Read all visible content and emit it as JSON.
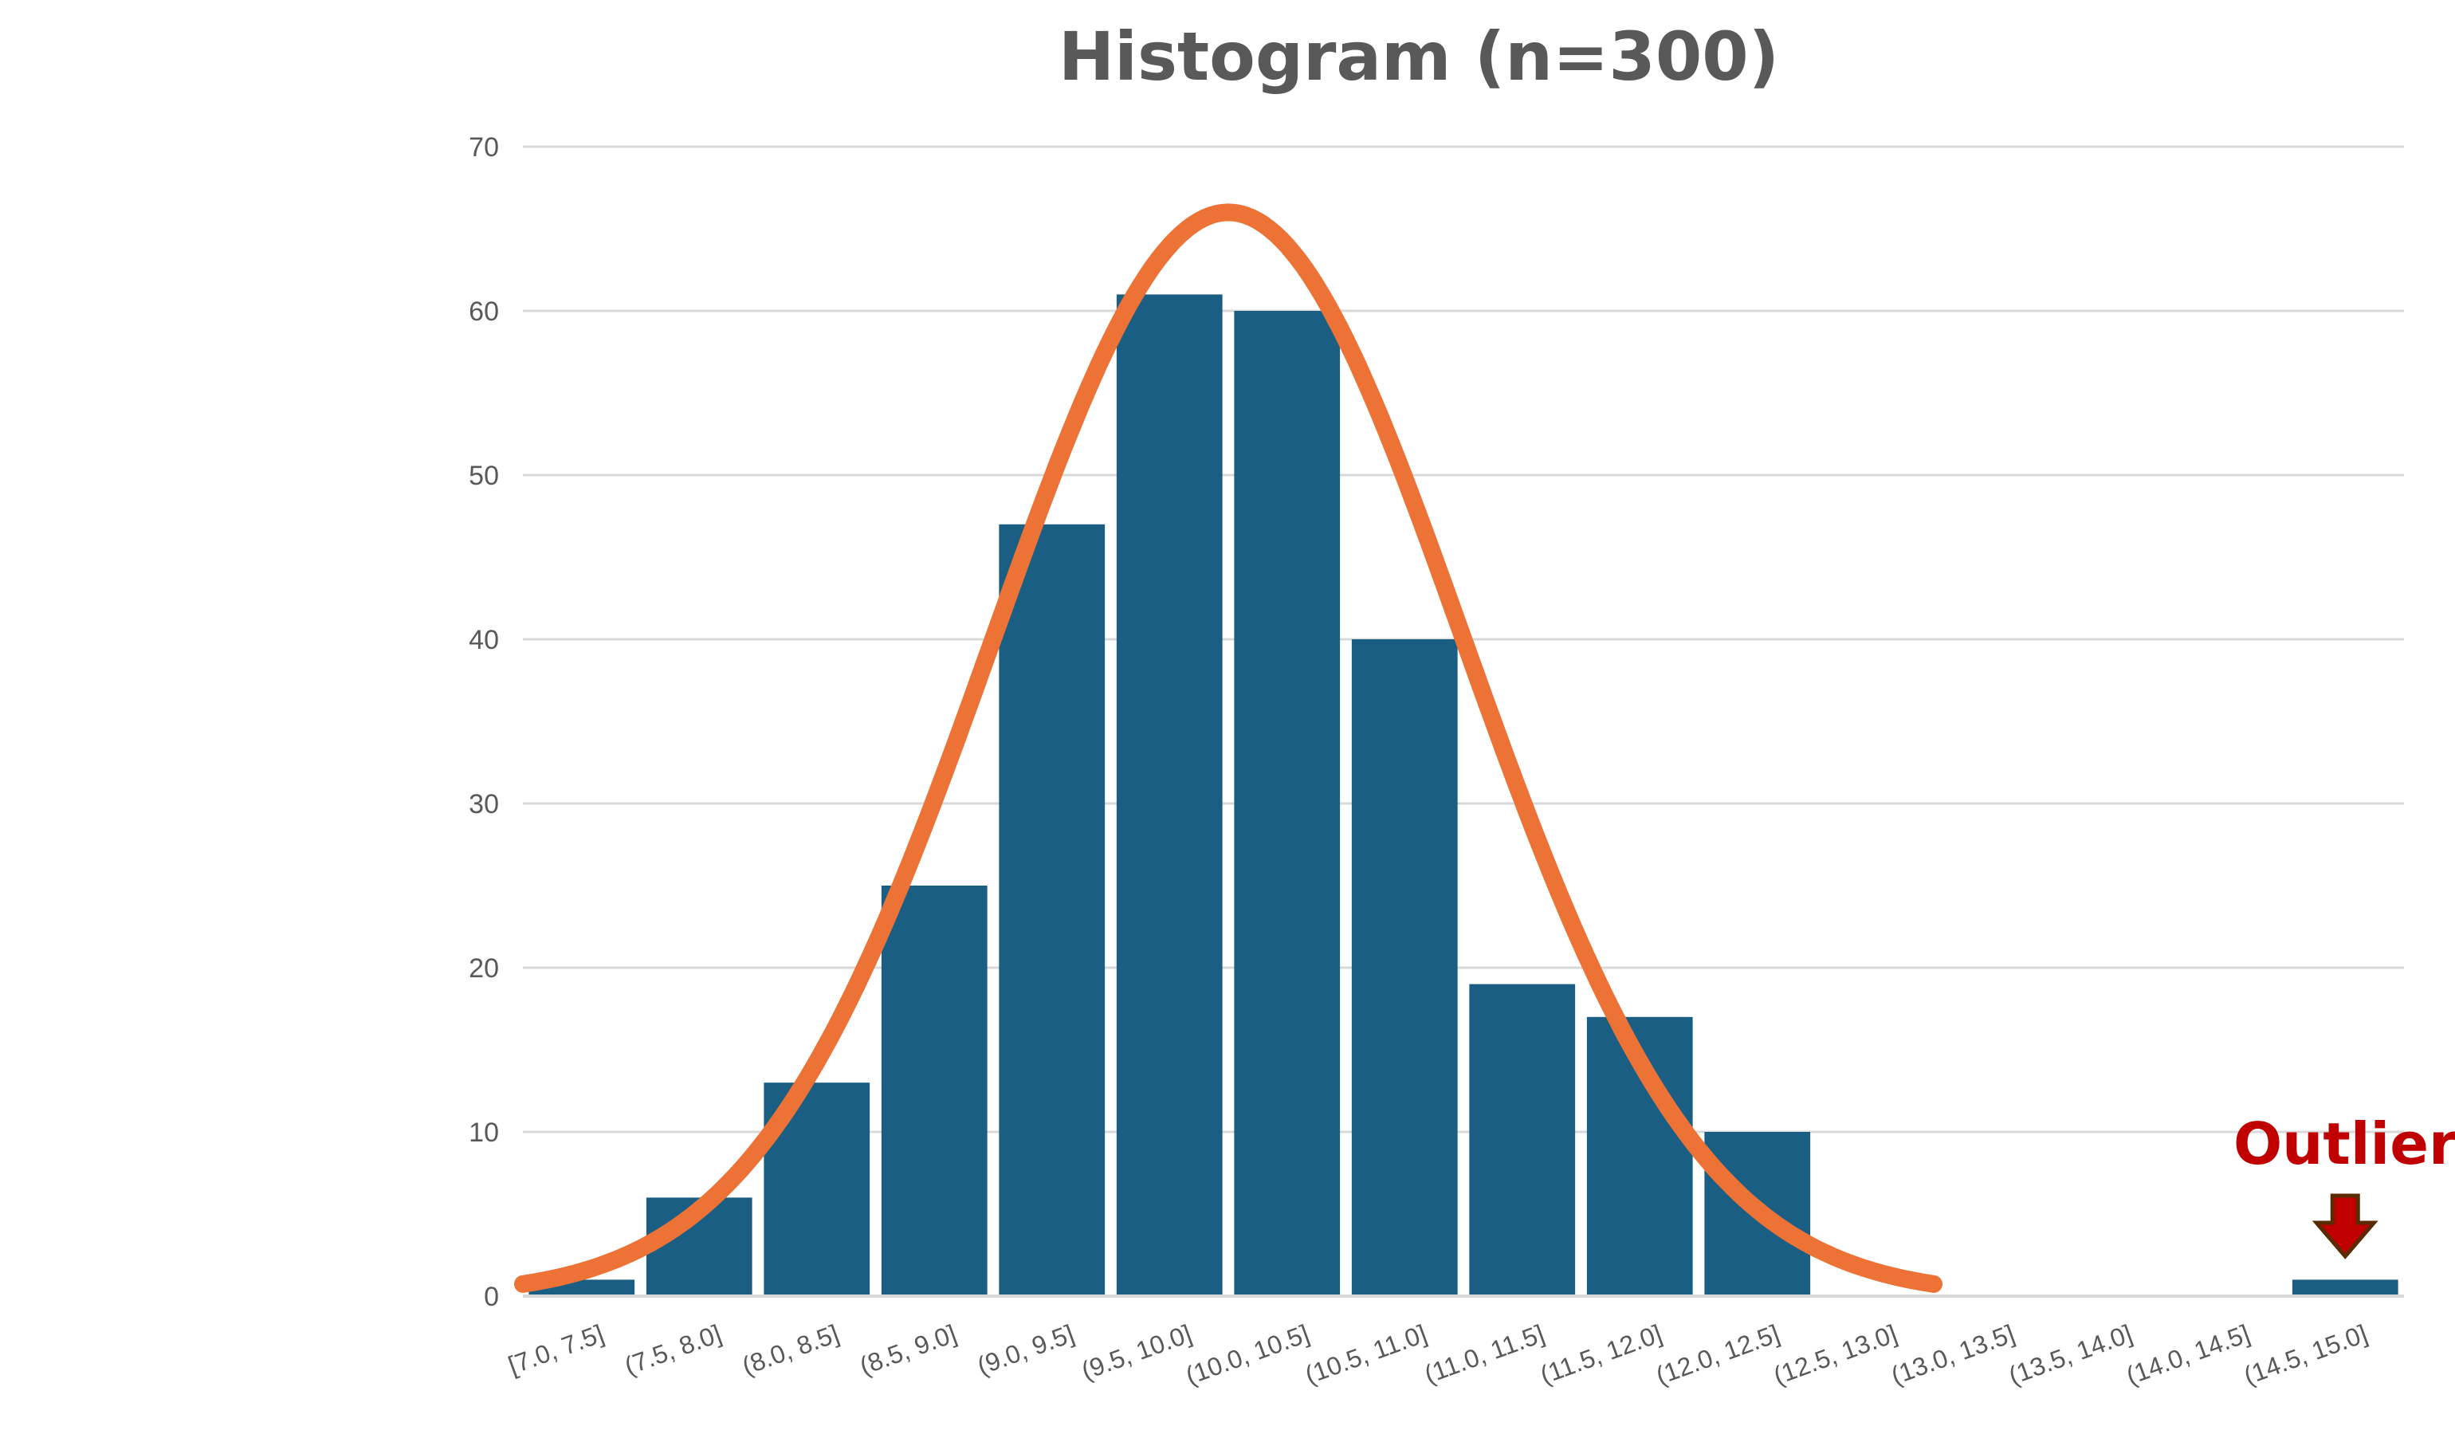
{
  "chart_data": {
    "type": "bar",
    "title": "Histogram (n=300)",
    "xlabel": "",
    "ylabel": "",
    "ylim": [
      0,
      70
    ],
    "yticks": [
      0,
      10,
      20,
      30,
      40,
      50,
      60,
      70
    ],
    "grid": true,
    "categories": [
      "[7.0, 7.5]",
      "(7.5, 8.0]",
      "(8.0, 8.5]",
      "(8.5, 9.0]",
      "(9.0, 9.5]",
      "(9.5, 10.0]",
      "(10.0, 10.5]",
      "(10.5, 11.0]",
      "(11.0, 11.5]",
      "(11.5, 12.0]",
      "(12.0, 12.5]",
      "(12.5, 13.0]",
      "(13.0, 13.5]",
      "(13.5, 14.0]",
      "(14.0, 14.5]",
      "(14.5, 15.0]"
    ],
    "values": [
      1,
      6,
      13,
      25,
      47,
      61,
      60,
      40,
      19,
      17,
      10,
      0,
      0,
      0,
      0,
      1
    ],
    "fit_curve": {
      "type": "normal",
      "x_range": [
        7.0,
        13.0
      ],
      "peak": 66,
      "mean": 10.0,
      "sd": 1.0
    },
    "annotation": {
      "text": "Outlier",
      "category": "(14.5, 15.0]"
    },
    "colors": {
      "bar": "#1a5f83",
      "curve": "#ed7235",
      "annotation": "#c00000",
      "arrow": "#c00000",
      "arrow_outline": "#5a2a00",
      "grid": "#d9d9d9",
      "text": "#595959"
    }
  }
}
